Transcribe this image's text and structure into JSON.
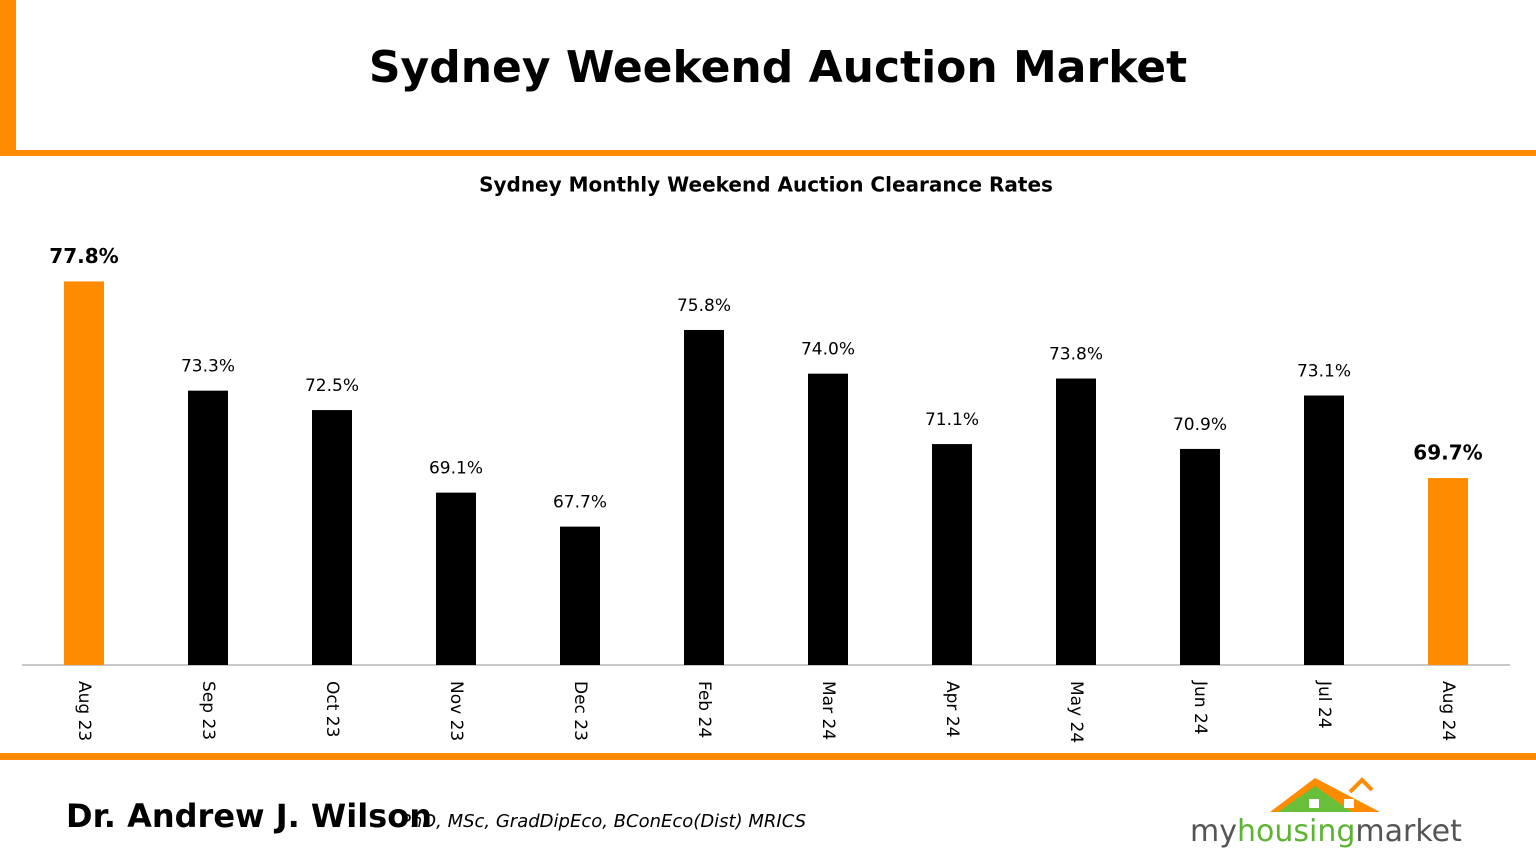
{
  "header": {
    "title": "Sydney Weekend Auction Market"
  },
  "chart_data": {
    "type": "bar",
    "title": "Sydney Monthly Weekend Auction Clearance Rates",
    "categories": [
      "Aug 23",
      "Sep 23",
      "Oct 23",
      "Nov 23",
      "Dec 23",
      "Feb 24",
      "Mar 24",
      "Apr 24",
      "May 24",
      "Jun 24",
      "Jul 24",
      "Aug 24"
    ],
    "values": [
      77.8,
      73.3,
      72.5,
      69.1,
      67.7,
      75.8,
      74.0,
      71.1,
      73.8,
      70.9,
      73.1,
      69.7
    ],
    "value_labels": [
      "77.8%",
      "73.3%",
      "72.5%",
      "69.1%",
      "67.7%",
      "75.8%",
      "74.0%",
      "71.1%",
      "73.8%",
      "70.9%",
      "73.1%",
      "69.7%"
    ],
    "color": "#000000",
    "colors": [
      "#ff8c00",
      "#000000",
      "#000000",
      "#000000",
      "#000000",
      "#000000",
      "#000000",
      "#000000",
      "#000000",
      "#000000",
      "#000000",
      "#ff8c00"
    ],
    "ylim": [
      62,
      80
    ]
  },
  "footer": {
    "author": "Dr. Andrew J. Wilson",
    "credentials": "PhD, MSc, GradDipEco, BConEco(Dist) MRICS",
    "logo": [
      "my",
      "housing",
      "market"
    ]
  }
}
